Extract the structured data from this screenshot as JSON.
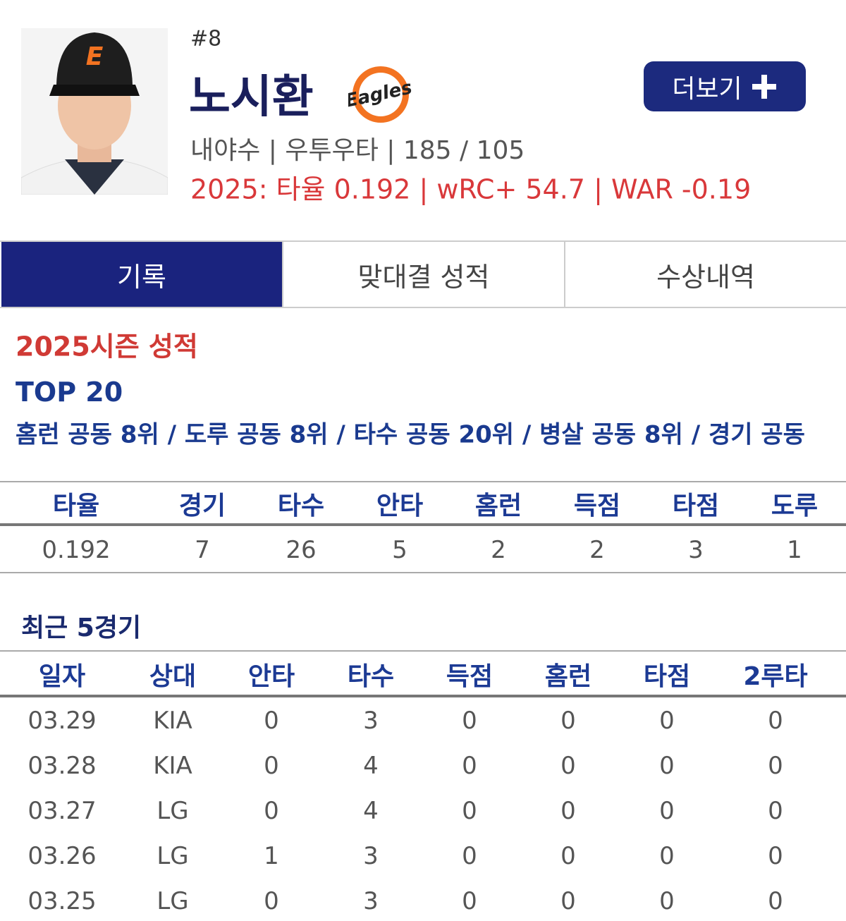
{
  "player": {
    "number": "#8",
    "name": "노시환",
    "logo": "Eagles",
    "info": "내야수 | 우투우타 | 185 / 105",
    "stats_line": "2025: 타율 0.192 | wRC+ 54.7 | WAR -0.19",
    "more_button": "더보기"
  },
  "tabs": [
    "기록",
    "맞대결 성적",
    "수상내역"
  ],
  "season": {
    "title": "2025시즌 성적",
    "top_label": "TOP 20",
    "top_text": "홈런 공동 8위 / 도루 공동 8위 / 타수 공동 20위 / 병살 공동 8위 / 경기 공동",
    "table": {
      "headers": [
        "타율",
        "경기",
        "타수",
        "안타",
        "홈런",
        "득점",
        "타점",
        "도루"
      ],
      "rows": [
        [
          "0.192",
          "7",
          "26",
          "5",
          "2",
          "2",
          "3",
          "1"
        ]
      ]
    }
  },
  "recent": {
    "title": "최근 5경기",
    "table": {
      "headers": [
        "일자",
        "상대",
        "안타",
        "타수",
        "득점",
        "홈런",
        "타점",
        "2루타"
      ],
      "rows": [
        [
          "03.29",
          "KIA",
          "0",
          "3",
          "0",
          "0",
          "0",
          "0"
        ],
        [
          "03.28",
          "KIA",
          "0",
          "4",
          "0",
          "0",
          "0",
          "0"
        ],
        [
          "03.27",
          "LG",
          "0",
          "4",
          "0",
          "0",
          "0",
          "0"
        ],
        [
          "03.26",
          "LG",
          "1",
          "3",
          "0",
          "0",
          "0",
          "0"
        ],
        [
          "03.25",
          "LG",
          "0",
          "3",
          "0",
          "0",
          "0",
          "0"
        ]
      ]
    }
  }
}
